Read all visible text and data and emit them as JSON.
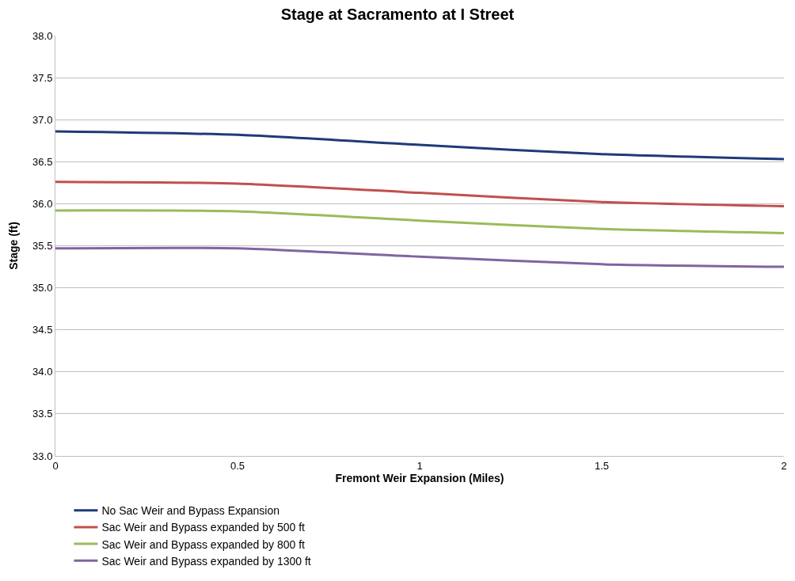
{
  "chart_data": {
    "type": "line",
    "title": "Stage at Sacramento at I Street",
    "xlabel": "Fremont Weir Expansion (Miles)",
    "ylabel": "Stage (ft)",
    "x": [
      0,
      0.5,
      1,
      1.5,
      2
    ],
    "series": [
      {
        "name": "No Sac Weir and Bypass Expansion",
        "color": "#1f3a7a",
        "values": [
          36.86,
          36.82,
          36.7,
          36.59,
          36.53
        ]
      },
      {
        "name": "Sac Weir and Bypass expanded by 500 ft",
        "color": "#c0504d",
        "values": [
          36.26,
          36.24,
          36.13,
          36.02,
          35.97
        ]
      },
      {
        "name": "Sac Weir and Bypass expanded by 800 ft",
        "color": "#9bbb59",
        "values": [
          35.92,
          35.91,
          35.8,
          35.7,
          35.65
        ]
      },
      {
        "name": "Sac Weir and Bypass expanded by 1300 ft",
        "color": "#8064a2",
        "values": [
          35.47,
          35.47,
          35.37,
          35.28,
          35.25
        ]
      }
    ],
    "xlim": [
      0,
      2
    ],
    "xticks": [
      0,
      0.5,
      1,
      1.5,
      2
    ],
    "ylim": [
      33,
      38
    ],
    "yticks": [
      {
        "value": 33,
        "label": "33.0"
      },
      {
        "value": 33.5,
        "label": "33.5"
      },
      {
        "value": 34,
        "label": "34.0"
      },
      {
        "value": 34.5,
        "label": "34.5"
      },
      {
        "value": 35,
        "label": "35.0"
      },
      {
        "value": 35.5,
        "label": "35.5"
      },
      {
        "value": 36,
        "label": "36.0"
      },
      {
        "value": 36.5,
        "label": "36.5"
      },
      {
        "value": 37,
        "label": "37.0"
      },
      {
        "value": 37.5,
        "label": "37.5"
      },
      {
        "value": 38,
        "label": "38.0"
      }
    ],
    "grid": "y",
    "legend": "bottom",
    "marker": "none",
    "line_style": "solid"
  }
}
